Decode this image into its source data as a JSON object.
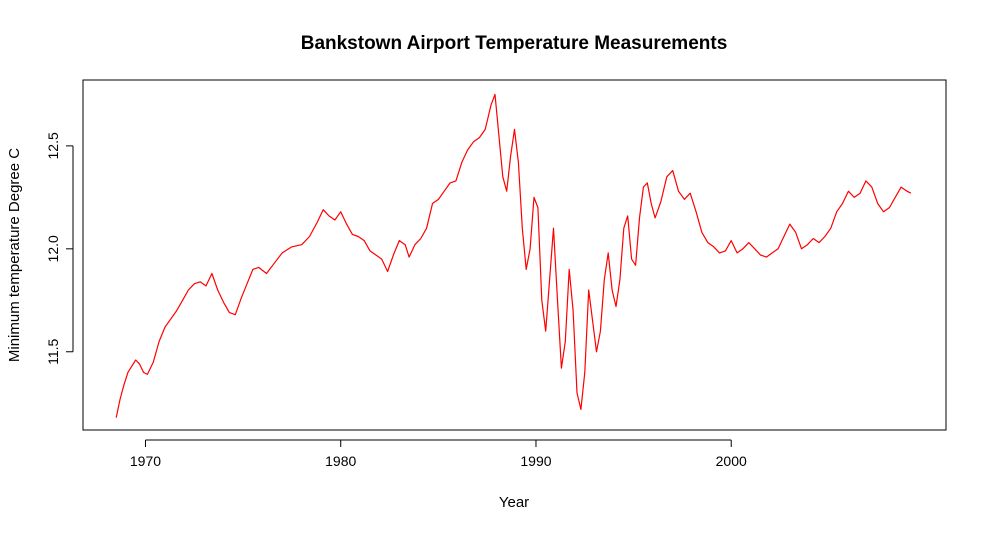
{
  "chart_data": {
    "type": "line",
    "title": "Bankstown Airport Temperature Measurements",
    "xlabel": "Year",
    "ylabel": "Minimum temperature Degree C",
    "xlim": [
      1966.8,
      2011.0
    ],
    "ylim": [
      11.12,
      12.82
    ],
    "x_ticks": [
      1970,
      1980,
      1990,
      2000
    ],
    "x_tick_labels": [
      "1970",
      "1980",
      "1990",
      "2000"
    ],
    "y_ticks": [
      11.5,
      12.0,
      12.5
    ],
    "y_tick_labels": [
      "11.5",
      "12.0",
      "12.5"
    ],
    "grid": false,
    "series": [
      {
        "color": "#ff0000",
        "x": [
          1968.5,
          1968.7,
          1968.9,
          1969.1,
          1969.3,
          1969.5,
          1969.7,
          1969.9,
          1970.1,
          1970.4,
          1970.7,
          1971.0,
          1971.3,
          1971.6,
          1971.9,
          1972.2,
          1972.5,
          1972.8,
          1973.1,
          1973.4,
          1973.7,
          1974.0,
          1974.3,
          1974.6,
          1974.9,
          1975.2,
          1975.5,
          1975.8,
          1976.2,
          1976.6,
          1977.0,
          1977.5,
          1978.0,
          1978.4,
          1978.8,
          1979.1,
          1979.4,
          1979.7,
          1980.0,
          1980.3,
          1980.6,
          1980.9,
          1981.2,
          1981.5,
          1981.8,
          1982.1,
          1982.4,
          1982.7,
          1983.0,
          1983.3,
          1983.5,
          1983.8,
          1984.1,
          1984.4,
          1984.7,
          1985.0,
          1985.3,
          1985.6,
          1985.9,
          1986.2,
          1986.5,
          1986.8,
          1987.1,
          1987.4,
          1987.7,
          1987.9,
          1988.1,
          1988.3,
          1988.5,
          1988.7,
          1988.9,
          1989.1,
          1989.3,
          1989.5,
          1989.7,
          1989.9,
          1990.1,
          1990.3,
          1990.5,
          1990.7,
          1990.9,
          1991.1,
          1991.3,
          1991.5,
          1991.7,
          1991.9,
          1992.1,
          1992.3,
          1992.5,
          1992.7,
          1992.9,
          1993.1,
          1993.3,
          1993.5,
          1993.7,
          1993.9,
          1994.1,
          1994.3,
          1994.5,
          1994.7,
          1994.9,
          1995.1,
          1995.3,
          1995.5,
          1995.7,
          1995.9,
          1996.1,
          1996.4,
          1996.7,
          1997.0,
          1997.3,
          1997.6,
          1997.9,
          1998.2,
          1998.5,
          1998.8,
          1999.1,
          1999.4,
          1999.7,
          2000.0,
          2000.3,
          2000.6,
          2000.9,
          2001.2,
          2001.5,
          2001.8,
          2002.1,
          2002.4,
          2002.7,
          2003.0,
          2003.3,
          2003.6,
          2003.9,
          2004.2,
          2004.5,
          2004.8,
          2005.1,
          2005.4,
          2005.7,
          2006.0,
          2006.3,
          2006.6,
          2006.9,
          2007.2,
          2007.5,
          2007.8,
          2008.1,
          2008.4,
          2008.7,
          2009.0,
          2009.2
        ],
        "y": [
          11.18,
          11.27,
          11.34,
          11.4,
          11.43,
          11.46,
          11.44,
          11.4,
          11.39,
          11.45,
          11.55,
          11.62,
          11.66,
          11.7,
          11.75,
          11.8,
          11.83,
          11.84,
          11.82,
          11.88,
          11.8,
          11.74,
          11.69,
          11.68,
          11.76,
          11.83,
          11.9,
          11.91,
          11.88,
          11.93,
          11.98,
          12.01,
          12.02,
          12.06,
          12.13,
          12.19,
          12.16,
          12.14,
          12.18,
          12.12,
          12.07,
          12.06,
          12.04,
          11.99,
          11.97,
          11.95,
          11.89,
          11.97,
          12.04,
          12.02,
          11.96,
          12.02,
          12.05,
          12.1,
          12.22,
          12.24,
          12.28,
          12.32,
          12.33,
          12.42,
          12.48,
          12.52,
          12.54,
          12.58,
          12.7,
          12.75,
          12.55,
          12.35,
          12.28,
          12.45,
          12.58,
          12.42,
          12.1,
          11.9,
          12.0,
          12.25,
          12.2,
          11.75,
          11.6,
          11.85,
          12.1,
          11.75,
          11.42,
          11.55,
          11.9,
          11.7,
          11.3,
          11.22,
          11.4,
          11.8,
          11.65,
          11.5,
          11.6,
          11.85,
          11.98,
          11.8,
          11.72,
          11.85,
          12.1,
          12.16,
          11.95,
          11.92,
          12.15,
          12.3,
          12.32,
          12.22,
          12.15,
          12.23,
          12.35,
          12.38,
          12.28,
          12.24,
          12.27,
          12.18,
          12.08,
          12.03,
          12.01,
          11.98,
          11.99,
          12.04,
          11.98,
          12.0,
          12.03,
          12.0,
          11.97,
          11.96,
          11.98,
          12.0,
          12.06,
          12.12,
          12.08,
          12.0,
          12.02,
          12.05,
          12.03,
          12.06,
          12.1,
          12.18,
          12.22,
          12.28,
          12.25,
          12.27,
          12.33,
          12.3,
          12.22,
          12.18,
          12.2,
          12.25,
          12.3,
          12.28,
          12.27
        ]
      }
    ]
  }
}
